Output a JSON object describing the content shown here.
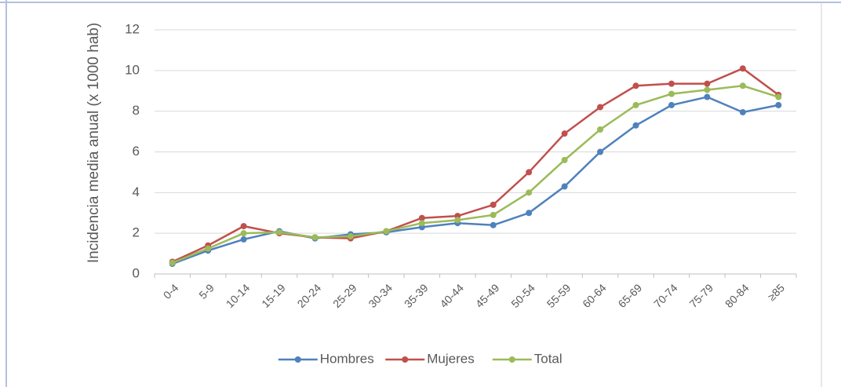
{
  "chart_data": {
    "type": "line",
    "y_label": "Incidencia media anual (x 1000 hab)",
    "categories": [
      "0-4",
      "5-9",
      "10-14",
      "15-19",
      "20-24",
      "25-29",
      "30-34",
      "35-39",
      "40-44",
      "45-49",
      "50-54",
      "55-59",
      "60-64",
      "65-69",
      "70-74",
      "75-79",
      "80-84",
      "≥85"
    ],
    "series": [
      {
        "name": "Hombres",
        "color": "#4f81bd",
        "values": [
          0.5,
          1.15,
          1.7,
          2.1,
          1.75,
          1.95,
          2.05,
          2.3,
          2.5,
          2.4,
          3.0,
          4.3,
          6.0,
          7.3,
          8.3,
          8.7,
          7.95,
          8.3
        ]
      },
      {
        "name": "Mujeres",
        "color": "#c0504d",
        "values": [
          0.6,
          1.4,
          2.35,
          2.0,
          1.8,
          1.75,
          2.1,
          2.75,
          2.85,
          3.4,
          5.0,
          6.9,
          8.2,
          9.25,
          9.35,
          9.35,
          10.1,
          8.8
        ]
      },
      {
        "name": "Total",
        "color": "#9bbb59",
        "values": [
          0.55,
          1.25,
          2.0,
          2.05,
          1.8,
          1.85,
          2.1,
          2.5,
          2.65,
          2.9,
          4.0,
          5.6,
          7.1,
          8.3,
          8.85,
          9.05,
          9.25,
          8.7
        ]
      }
    ],
    "ylim": [
      0,
      12
    ],
    "yticks": [
      0,
      2,
      4,
      6,
      8,
      10,
      12
    ],
    "grid": true,
    "legend": "bottom"
  }
}
